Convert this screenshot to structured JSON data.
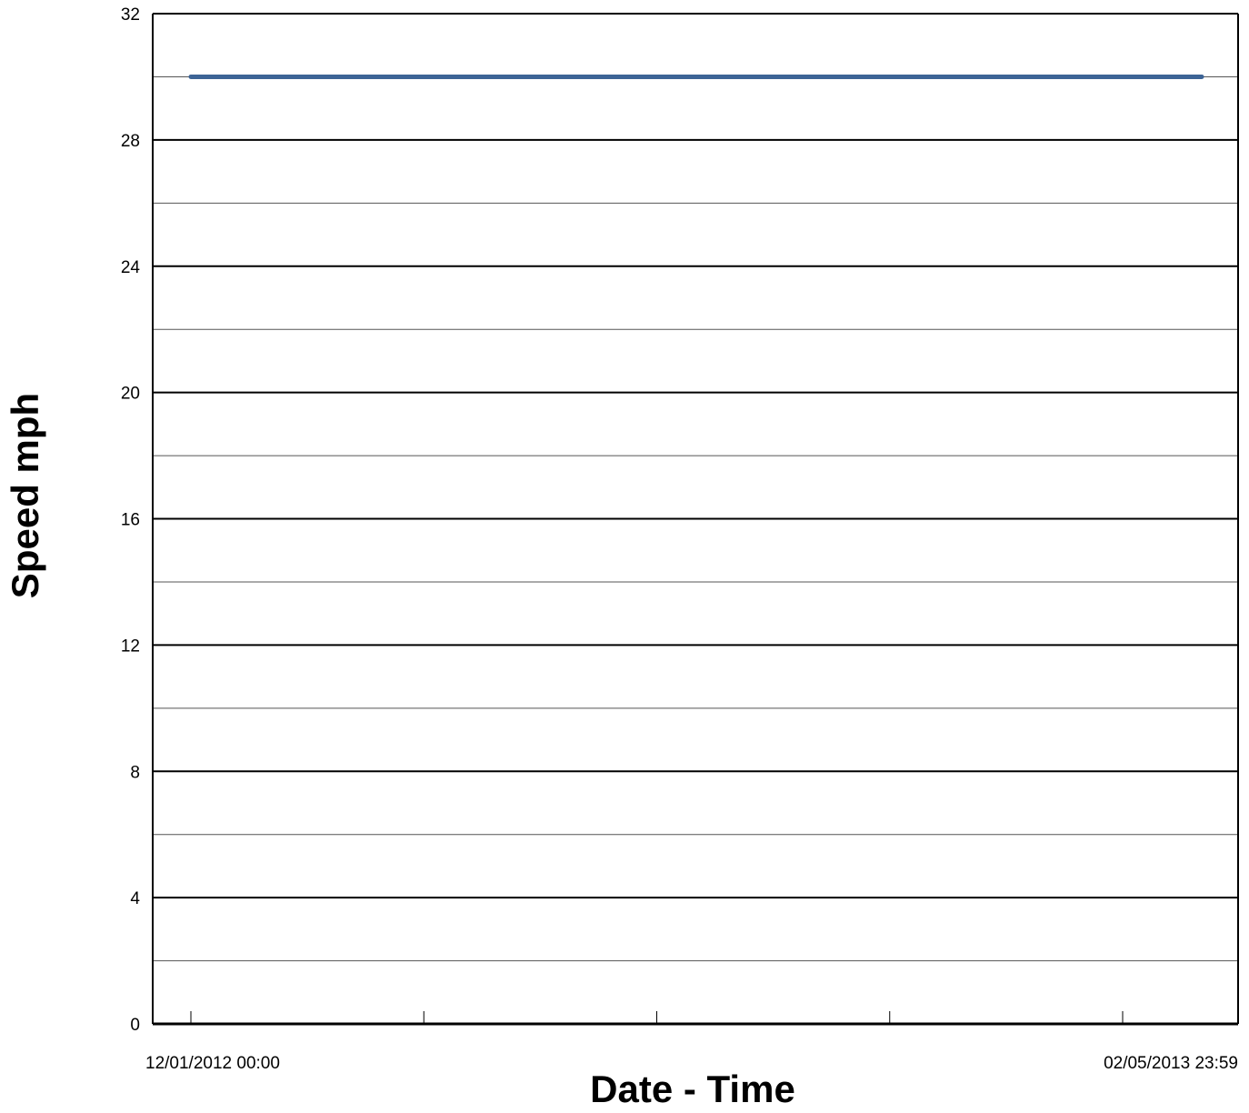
{
  "chart_data": {
    "type": "line",
    "title": "",
    "xlabel": "Date - Time",
    "ylabel": "Speed mph",
    "x_range": [
      "12/01/2012 00:00",
      "02/05/2013 23:59"
    ],
    "x_tick_labels": [
      "12/01/2012 00:00",
      "02/05/2013 23:59"
    ],
    "x_tick_count": 5,
    "ylim": [
      0,
      32
    ],
    "y_ticks": [
      0,
      4,
      8,
      12,
      16,
      20,
      24,
      28,
      32
    ],
    "y_minor_gridlines": [
      2,
      6,
      10,
      14,
      18,
      22,
      26,
      30
    ],
    "grid": true,
    "series": [
      {
        "color": "#3d6496",
        "x": [
          "12/01/2012 00:00",
          "02/05/2013 23:59"
        ],
        "values": [
          30,
          30
        ]
      }
    ]
  }
}
